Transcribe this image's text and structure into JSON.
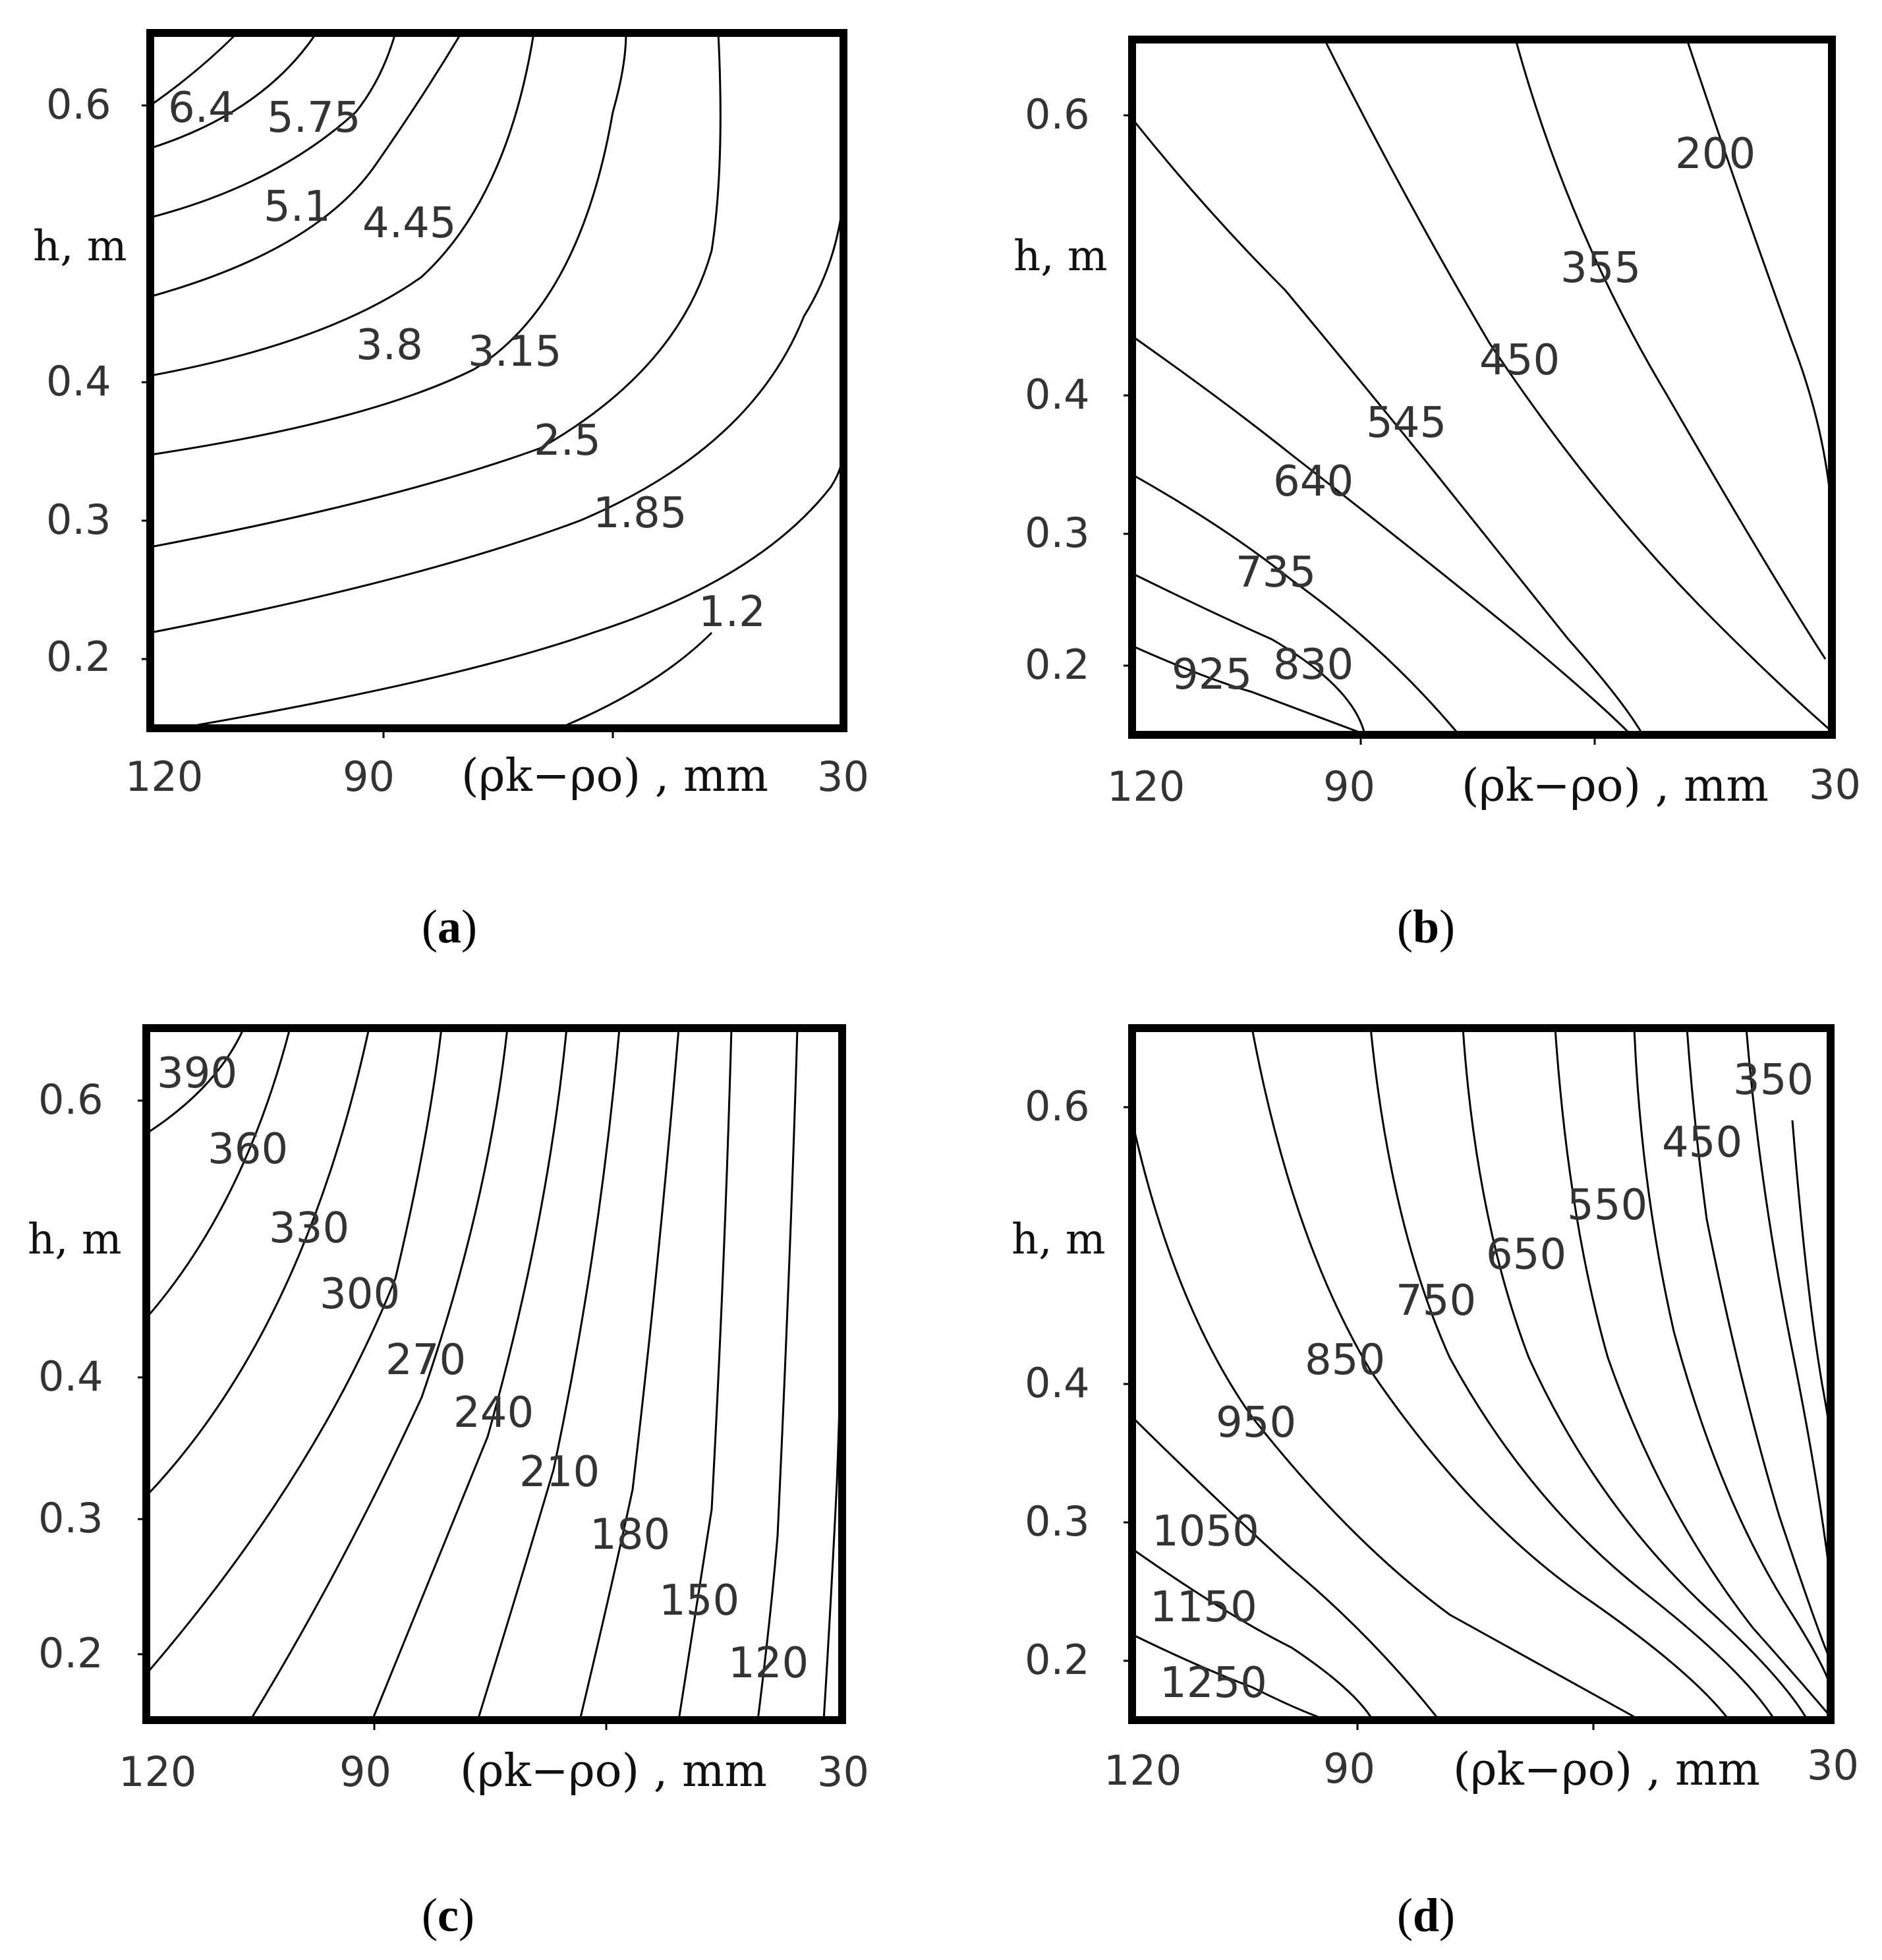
{
  "chart_data": [
    {
      "type": "contour",
      "panel": "a",
      "caption_letter": "a",
      "caption_open": "(",
      "caption_close": ")",
      "xlabel": "(ρk−ρo) , mm",
      "ylabel": "h, m",
      "x_ticks": [
        "120",
        "90",
        "30"
      ],
      "y_ticks": [
        "0.6",
        "0.4",
        "0.3",
        "0.2"
      ],
      "contour_labels": [
        "6.4",
        "5.75",
        "5.1",
        "4.45",
        "3.8",
        "3.15",
        "2.5",
        "1.85",
        "1.2"
      ]
    },
    {
      "type": "contour",
      "panel": "b",
      "caption_letter": "b",
      "caption_open": "(",
      "caption_close": ")",
      "xlabel": "(ρk−ρo) , mm",
      "ylabel": "h, m",
      "x_ticks": [
        "120",
        "90",
        "30"
      ],
      "y_ticks": [
        "0.6",
        "0.4",
        "0.3",
        "0.2"
      ],
      "contour_labels": [
        "200",
        "355",
        "450",
        "545",
        "640",
        "735",
        "830",
        "925"
      ]
    },
    {
      "type": "contour",
      "panel": "c",
      "caption_letter": "c",
      "caption_open": "(",
      "caption_close": ")",
      "xlabel": "(ρk−ρo) , mm",
      "ylabel": "h, m",
      "x_ticks": [
        "120",
        "90",
        "30"
      ],
      "y_ticks": [
        "0.6",
        "0.4",
        "0.3",
        "0.2"
      ],
      "contour_labels": [
        "390",
        "360",
        "330",
        "300",
        "270",
        "240",
        "210",
        "180",
        "150",
        "120"
      ]
    },
    {
      "type": "contour",
      "panel": "d",
      "caption_letter": "d",
      "caption_open": "(",
      "caption_close": ")",
      "xlabel": "(ρk−ρo) , mm",
      "ylabel": "h, m",
      "x_ticks": [
        "120",
        "90",
        "30"
      ],
      "y_ticks": [
        "0.6",
        "0.4",
        "0.3",
        "0.2"
      ],
      "contour_labels": [
        "350",
        "450",
        "550",
        "650",
        "750",
        "850",
        "950",
        "1050",
        "1150",
        "1250"
      ]
    }
  ]
}
